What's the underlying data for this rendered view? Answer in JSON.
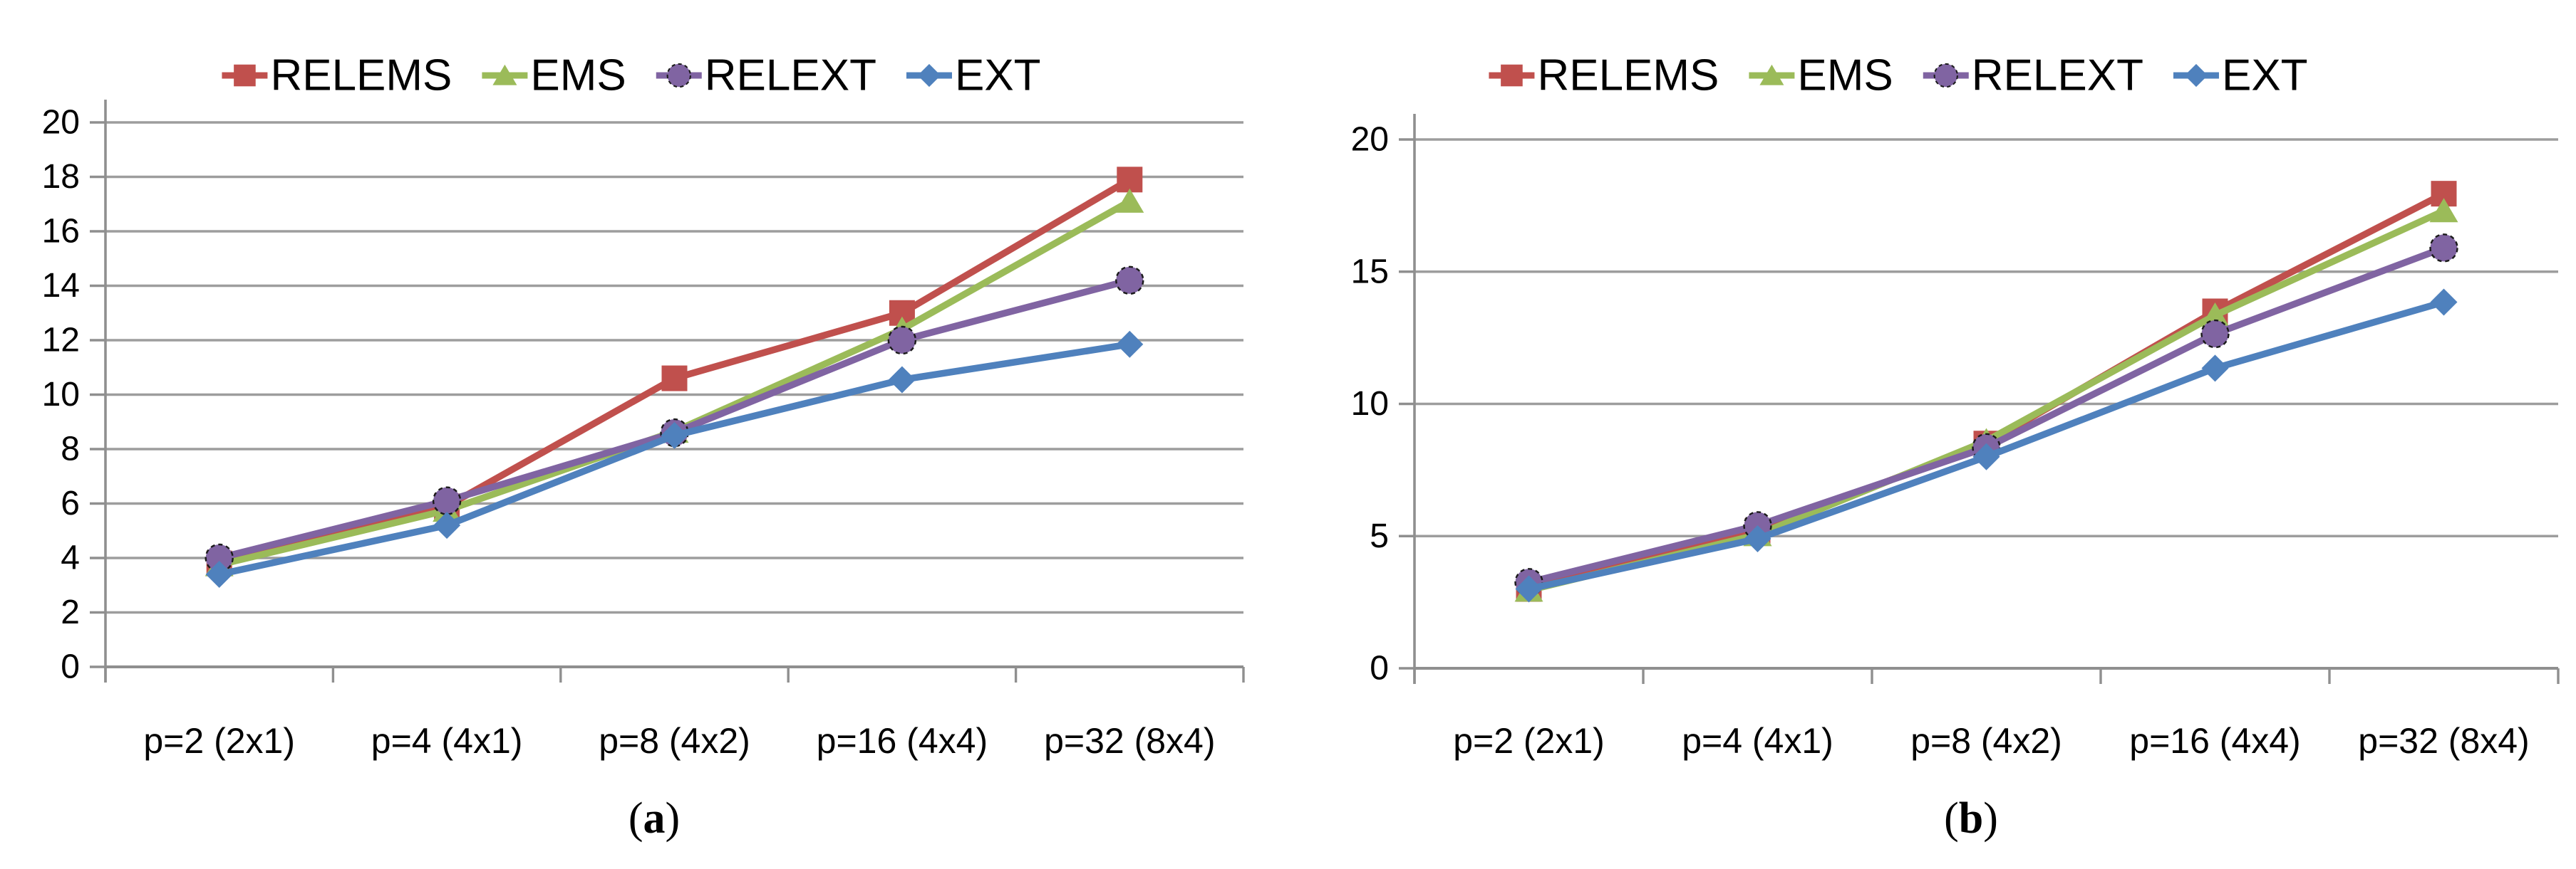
{
  "figure": {
    "background": "#ffffff",
    "text_color": "#000000",
    "gridline_color": "#9d9d9d",
    "axis_color": "#8f8f8f"
  },
  "chart_data": [
    {
      "id": "a",
      "type": "line",
      "title": "",
      "xlabel": "",
      "ylabel": "",
      "grid": true,
      "legend_position": "top",
      "ylim": [
        0,
        20
      ],
      "yticks": [
        0,
        2,
        4,
        6,
        8,
        10,
        12,
        14,
        16,
        18,
        20
      ],
      "categories": [
        "p=2 (2x1)",
        "p=4 (4x1)",
        "p=8 (4x2)",
        "p=16 (4x4)",
        "p=32 (8x4)"
      ],
      "series": [
        {
          "name": "RELEMS",
          "marker": "square",
          "color": "#C0504D",
          "values": [
            3.8,
            5.9,
            10.6,
            13.0,
            17.9
          ]
        },
        {
          "name": "EMS",
          "marker": "triangle",
          "color": "#9BBB59",
          "values": [
            3.75,
            5.75,
            8.65,
            12.4,
            17.1
          ]
        },
        {
          "name": "RELEXT",
          "marker": "circle",
          "color": "#8064A2",
          "values": [
            4.0,
            6.1,
            8.6,
            12.0,
            14.2
          ]
        },
        {
          "name": "EXT",
          "marker": "diamond",
          "color": "#4F81BD",
          "values": [
            3.4,
            5.2,
            8.5,
            10.55,
            11.85
          ]
        }
      ],
      "caption": {
        "open": "(",
        "letter": "a",
        "close": ")"
      }
    },
    {
      "id": "b",
      "type": "line",
      "title": "",
      "xlabel": "",
      "ylabel": "",
      "grid": true,
      "legend_position": "top",
      "ylim": [
        0,
        20
      ],
      "yticks": [
        0,
        5,
        10,
        15,
        20
      ],
      "categories": [
        "p=2 (2x1)",
        "p=4 (4x1)",
        "p=8 (4x2)",
        "p=16 (4x4)",
        "p=32 (8x4)"
      ],
      "series": [
        {
          "name": "RELEMS",
          "marker": "square",
          "color": "#C0504D",
          "values": [
            3.0,
            5.2,
            8.5,
            13.5,
            17.95
          ]
        },
        {
          "name": "EMS",
          "marker": "triangle",
          "color": "#9BBB59",
          "values": [
            2.95,
            5.05,
            8.6,
            13.35,
            17.3
          ]
        },
        {
          "name": "RELEXT",
          "marker": "circle",
          "color": "#8064A2",
          "values": [
            3.25,
            5.4,
            8.35,
            12.65,
            15.9
          ]
        },
        {
          "name": "EXT",
          "marker": "diamond",
          "color": "#4F81BD",
          "values": [
            3.0,
            4.9,
            8.0,
            11.35,
            13.85
          ]
        }
      ],
      "caption": {
        "open": "(",
        "letter": "b",
        "close": ")"
      }
    }
  ]
}
